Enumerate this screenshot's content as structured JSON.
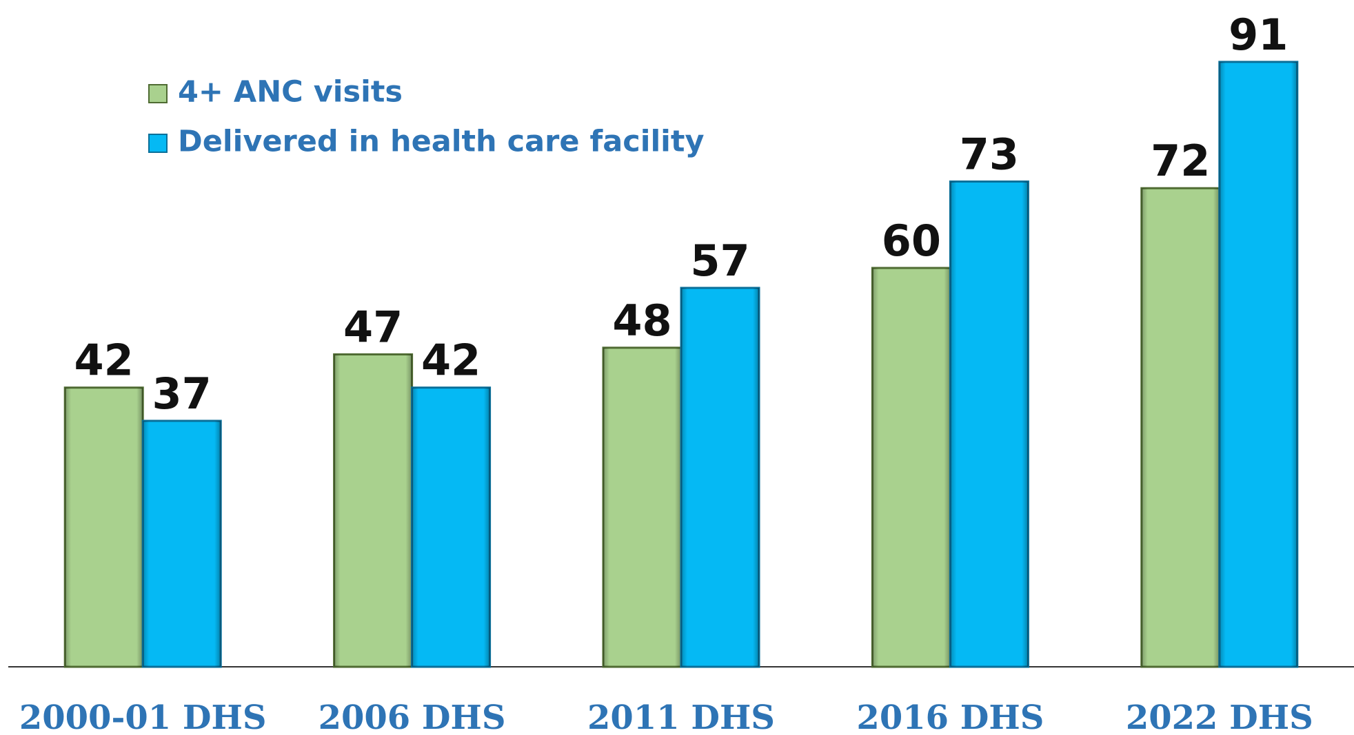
{
  "chart_data": {
    "type": "bar",
    "categories": [
      "2000-01 DHS",
      "2006 DHS",
      "2011 DHS",
      "2016 DHS",
      "2022 DHS"
    ],
    "series": [
      {
        "name": "4+ ANC visits",
        "color": "#a9d18e",
        "values": [
          42,
          47,
          48,
          60,
          72
        ]
      },
      {
        "name": "Delivered in health care facility",
        "color": "#05b9f4",
        "values": [
          37,
          42,
          57,
          73,
          91
        ]
      }
    ],
    "ylim": [
      0,
      100
    ],
    "legend": "top-left"
  }
}
